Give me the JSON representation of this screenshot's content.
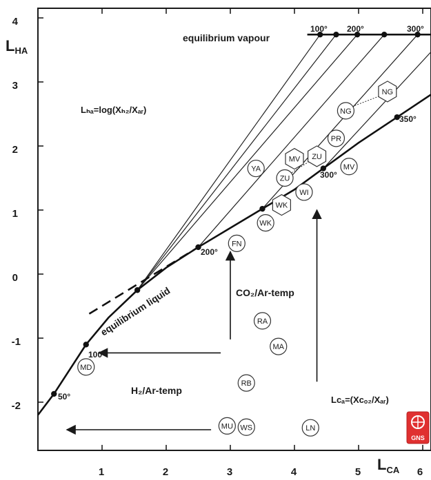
{
  "axes": {
    "x_ticks": [
      "1",
      "2",
      "3",
      "4",
      "5",
      "6"
    ],
    "y_ticks": [
      "4",
      "3",
      "2",
      "1",
      "0",
      "-1",
      "-2"
    ],
    "x_title_main": "L",
    "x_title_sub": "CA",
    "y_title_main": "L",
    "y_title_sub": "HA"
  },
  "annotations": {
    "equilibrium_vapour": "equilibrium vapour",
    "equilibrium_liquid": "equilibrium liquid",
    "co2_ar_temp": "CO₂/Ar-temp",
    "h2_ar_temp": "H₂/Ar-temp",
    "lha_definition": "Lₕₐ=log(Xₕ₂/Xₐᵣ)",
    "lca_definition": "Lᴄₐ=(Xᴄₒ₂/Xₐᵣ)"
  },
  "temperature_labels": {
    "vapour": [
      "100°",
      "200°",
      "300°"
    ],
    "liquid": [
      "50°",
      "100°",
      "200°",
      "300°",
      "350°"
    ]
  },
  "circle_sites": [
    {
      "label": "MD",
      "x": 0.75,
      "y": -1.45
    },
    {
      "label": "YA",
      "x": 3.4,
      "y": 1.65
    },
    {
      "label": "FN",
      "x": 3.1,
      "y": 0.48
    },
    {
      "label": "WK",
      "x": 3.55,
      "y": 0.8
    },
    {
      "label": "WI",
      "x": 4.15,
      "y": 1.28
    },
    {
      "label": "ZU",
      "x": 3.85,
      "y": 1.5
    },
    {
      "label": "MV",
      "x": 4.85,
      "y": 1.68
    },
    {
      "label": "PR",
      "x": 4.65,
      "y": 2.12
    },
    {
      "label": "NG",
      "x": 4.8,
      "y": 2.55
    },
    {
      "label": "RA",
      "x": 3.5,
      "y": -0.73
    },
    {
      "label": "MA",
      "x": 3.75,
      "y": -1.13
    },
    {
      "label": "RB",
      "x": 3.25,
      "y": -1.7
    },
    {
      "label": "MU",
      "x": 2.95,
      "y": -2.37
    },
    {
      "label": "WS",
      "x": 3.25,
      "y": -2.39
    },
    {
      "label": "LN",
      "x": 4.25,
      "y": -2.4
    }
  ],
  "hexagon_sites": [
    {
      "label": "NG",
      "x": 5.45,
      "y": 2.85
    },
    {
      "label": "MV",
      "x": 4.0,
      "y": 1.8
    },
    {
      "label": "ZU",
      "x": 4.35,
      "y": 1.84
    },
    {
      "label": "WK",
      "x": 3.8,
      "y": 1.08
    }
  ],
  "curves": {
    "liquid_curve": [
      [
        0.0,
        -2.2
      ],
      [
        0.25,
        -1.87
      ],
      [
        0.75,
        -1.1
      ],
      [
        1.1,
        -0.68
      ],
      [
        1.55,
        -0.25
      ],
      [
        2.0,
        0.1
      ],
      [
        2.5,
        0.42
      ],
      [
        3.0,
        0.72
      ],
      [
        3.5,
        1.02
      ],
      [
        4.0,
        1.32
      ],
      [
        4.45,
        1.65
      ],
      [
        5.0,
        2.05
      ],
      [
        5.6,
        2.45
      ],
      [
        6.2,
        2.85
      ]
    ],
    "equilibrium_dashed": [
      [
        0.8,
        -0.62
      ],
      [
        2.5,
        0.42
      ]
    ],
    "vapour_line": [
      [
        4.2,
        3.74
      ],
      [
        6.2,
        3.74
      ]
    ],
    "vapour_points": [
      4.4,
      4.65,
      4.98,
      5.4,
      5.92,
      6.25
    ],
    "liquid_points": [
      [
        0.25,
        -1.87
      ],
      [
        0.75,
        -1.1
      ],
      [
        1.55,
        -0.25
      ],
      [
        2.5,
        0.42
      ],
      [
        3.5,
        1.02
      ],
      [
        4.45,
        1.65
      ],
      [
        5.6,
        2.45
      ]
    ],
    "isotherms": [
      [
        [
          1.55,
          -0.25
        ],
        [
          4.4,
          3.74
        ]
      ],
      [
        [
          1.55,
          -0.25
        ],
        [
          4.65,
          3.74
        ]
      ],
      [
        [
          1.55,
          -0.25
        ],
        [
          4.98,
          3.74
        ]
      ],
      [
        [
          2.5,
          0.42
        ],
        [
          5.4,
          3.74
        ]
      ],
      [
        [
          3.5,
          1.02
        ],
        [
          5.92,
          3.74
        ]
      ],
      [
        [
          4.45,
          1.65
        ],
        [
          6.25,
          3.6
        ]
      ]
    ]
  },
  "arrows": [
    {
      "from": [
        3.0,
        -1.02
      ],
      "to": [
        3.0,
        0.35
      ]
    },
    {
      "from": [
        4.35,
        -1.68
      ],
      "to": [
        4.35,
        1.0
      ]
    },
    {
      "from": [
        2.85,
        -1.23
      ],
      "to": [
        0.95,
        -1.23
      ]
    },
    {
      "from": [
        2.7,
        -2.43
      ],
      "to": [
        0.45,
        -2.43
      ]
    }
  ],
  "logo": {
    "text": "GNS",
    "color": "#e03030"
  }
}
